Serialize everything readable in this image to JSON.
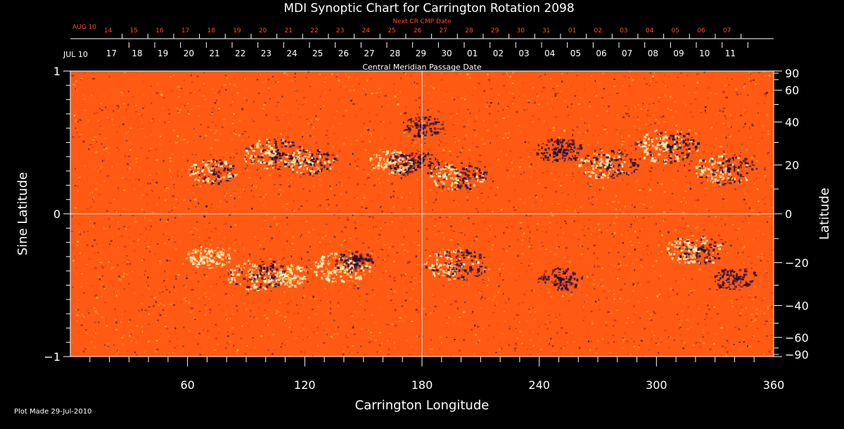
{
  "chart_data": {
    "type": "heatmap",
    "title": "MDI Synoptic Chart for Carrington Rotation 2098",
    "xlabel": "Carrington Longitude",
    "ylabel_left": "Sine Latitude",
    "ylabel_right": "Latitude",
    "xlim": [
      0,
      360
    ],
    "ylim": [
      -1,
      1
    ],
    "x_ticks": [
      "60",
      "120",
      "180",
      "240",
      "300",
      "360"
    ],
    "x_tick_values": [
      60,
      120,
      180,
      240,
      300,
      360
    ],
    "x_minor_step": 10,
    "y_left_ticks": [
      {
        "value": 1,
        "label": "1"
      },
      {
        "value": 0,
        "label": "0"
      },
      {
        "value": -1,
        "label": "−1"
      }
    ],
    "y_right_ticks": [
      {
        "lat": 90,
        "label": "90"
      },
      {
        "lat": 60,
        "label": "60"
      },
      {
        "lat": 40,
        "label": "40"
      },
      {
        "lat": 20,
        "label": "20"
      },
      {
        "lat": 0,
        "label": "0"
      },
      {
        "lat": -20,
        "label": "−20"
      },
      {
        "lat": -40,
        "label": "−40"
      },
      {
        "lat": -60,
        "label": "−60"
      },
      {
        "lat": -90,
        "label": "−90"
      }
    ],
    "y_right_minor_lats": [
      80,
      70,
      50,
      30,
      10,
      -10,
      -30,
      -50,
      -70,
      -80
    ],
    "top_axis_white": {
      "start_label": "JUL 10",
      "dates": [
        "11",
        "10",
        "09",
        "08",
        "07",
        "06",
        "05",
        "04",
        "03",
        "02",
        "01",
        "30",
        "29",
        "28",
        "27",
        "26",
        "25",
        "24",
        "23",
        "22",
        "21",
        "20",
        "19",
        "18",
        "17"
      ],
      "first_longitude": 360,
      "step_degrees": -13.2,
      "caption": "Central Meridian Passage Date"
    },
    "top_axis_red": {
      "start_label": "AUG 10",
      "dates": [
        "07",
        "06",
        "05",
        "04",
        "03",
        "02",
        "01",
        "31",
        "30",
        "29",
        "28",
        "27",
        "26",
        "25",
        "24",
        "23",
        "22",
        "21",
        "20",
        "19",
        "18",
        "17",
        "16",
        "15",
        "14"
      ],
      "first_longitude": 356.5,
      "step_degrees": -13.2,
      "caption": "Next CR CMP Date"
    },
    "colormap": {
      "background": "#ff5a14",
      "negative": "#1a0f3a",
      "positive": "#fff6c0",
      "mid_negative": "#9a1a28",
      "mid_positive": "#ffc13c"
    },
    "active_regions": [
      {
        "lon": 72,
        "sinlat": 0.3,
        "polarity": "mixed",
        "size": 0.6
      },
      {
        "lon": 104,
        "sinlat": 0.42,
        "polarity": "mixed",
        "size": 1.0
      },
      {
        "lon": 122,
        "sinlat": 0.37,
        "polarity": "mixed",
        "size": 0.7
      },
      {
        "lon": 165,
        "sinlat": 0.37,
        "polarity": "positive",
        "size": 0.6
      },
      {
        "lon": 175,
        "sinlat": 0.36,
        "polarity": "negative",
        "size": 0.7
      },
      {
        "lon": 180,
        "sinlat": 0.62,
        "polarity": "negative",
        "size": 0.4
      },
      {
        "lon": 198,
        "sinlat": 0.27,
        "polarity": "mixed",
        "size": 0.9
      },
      {
        "lon": 250,
        "sinlat": 0.45,
        "polarity": "negative",
        "size": 0.6
      },
      {
        "lon": 275,
        "sinlat": 0.35,
        "polarity": "mixed",
        "size": 0.9
      },
      {
        "lon": 305,
        "sinlat": 0.48,
        "polarity": "mixed",
        "size": 1.1
      },
      {
        "lon": 335,
        "sinlat": 0.32,
        "polarity": "mixed",
        "size": 1.0
      },
      {
        "lon": 95,
        "sinlat": -0.42,
        "polarity": "mixed",
        "size": 1.0
      },
      {
        "lon": 110,
        "sinlat": -0.43,
        "polarity": "positive",
        "size": 0.6
      },
      {
        "lon": 138,
        "sinlat": -0.37,
        "polarity": "positive",
        "size": 0.9
      },
      {
        "lon": 145,
        "sinlat": -0.33,
        "polarity": "negative",
        "size": 0.4
      },
      {
        "lon": 70,
        "sinlat": -0.3,
        "polarity": "positive",
        "size": 0.5
      },
      {
        "lon": 197,
        "sinlat": -0.35,
        "polarity": "mixed",
        "size": 1.0
      },
      {
        "lon": 250,
        "sinlat": -0.45,
        "polarity": "negative",
        "size": 0.5
      },
      {
        "lon": 320,
        "sinlat": -0.25,
        "polarity": "mixed",
        "size": 0.9
      },
      {
        "lon": 340,
        "sinlat": -0.45,
        "polarity": "negative",
        "size": 0.5
      }
    ]
  },
  "footer": {
    "plot_made": "Plot Made 29-Jul-2010"
  }
}
